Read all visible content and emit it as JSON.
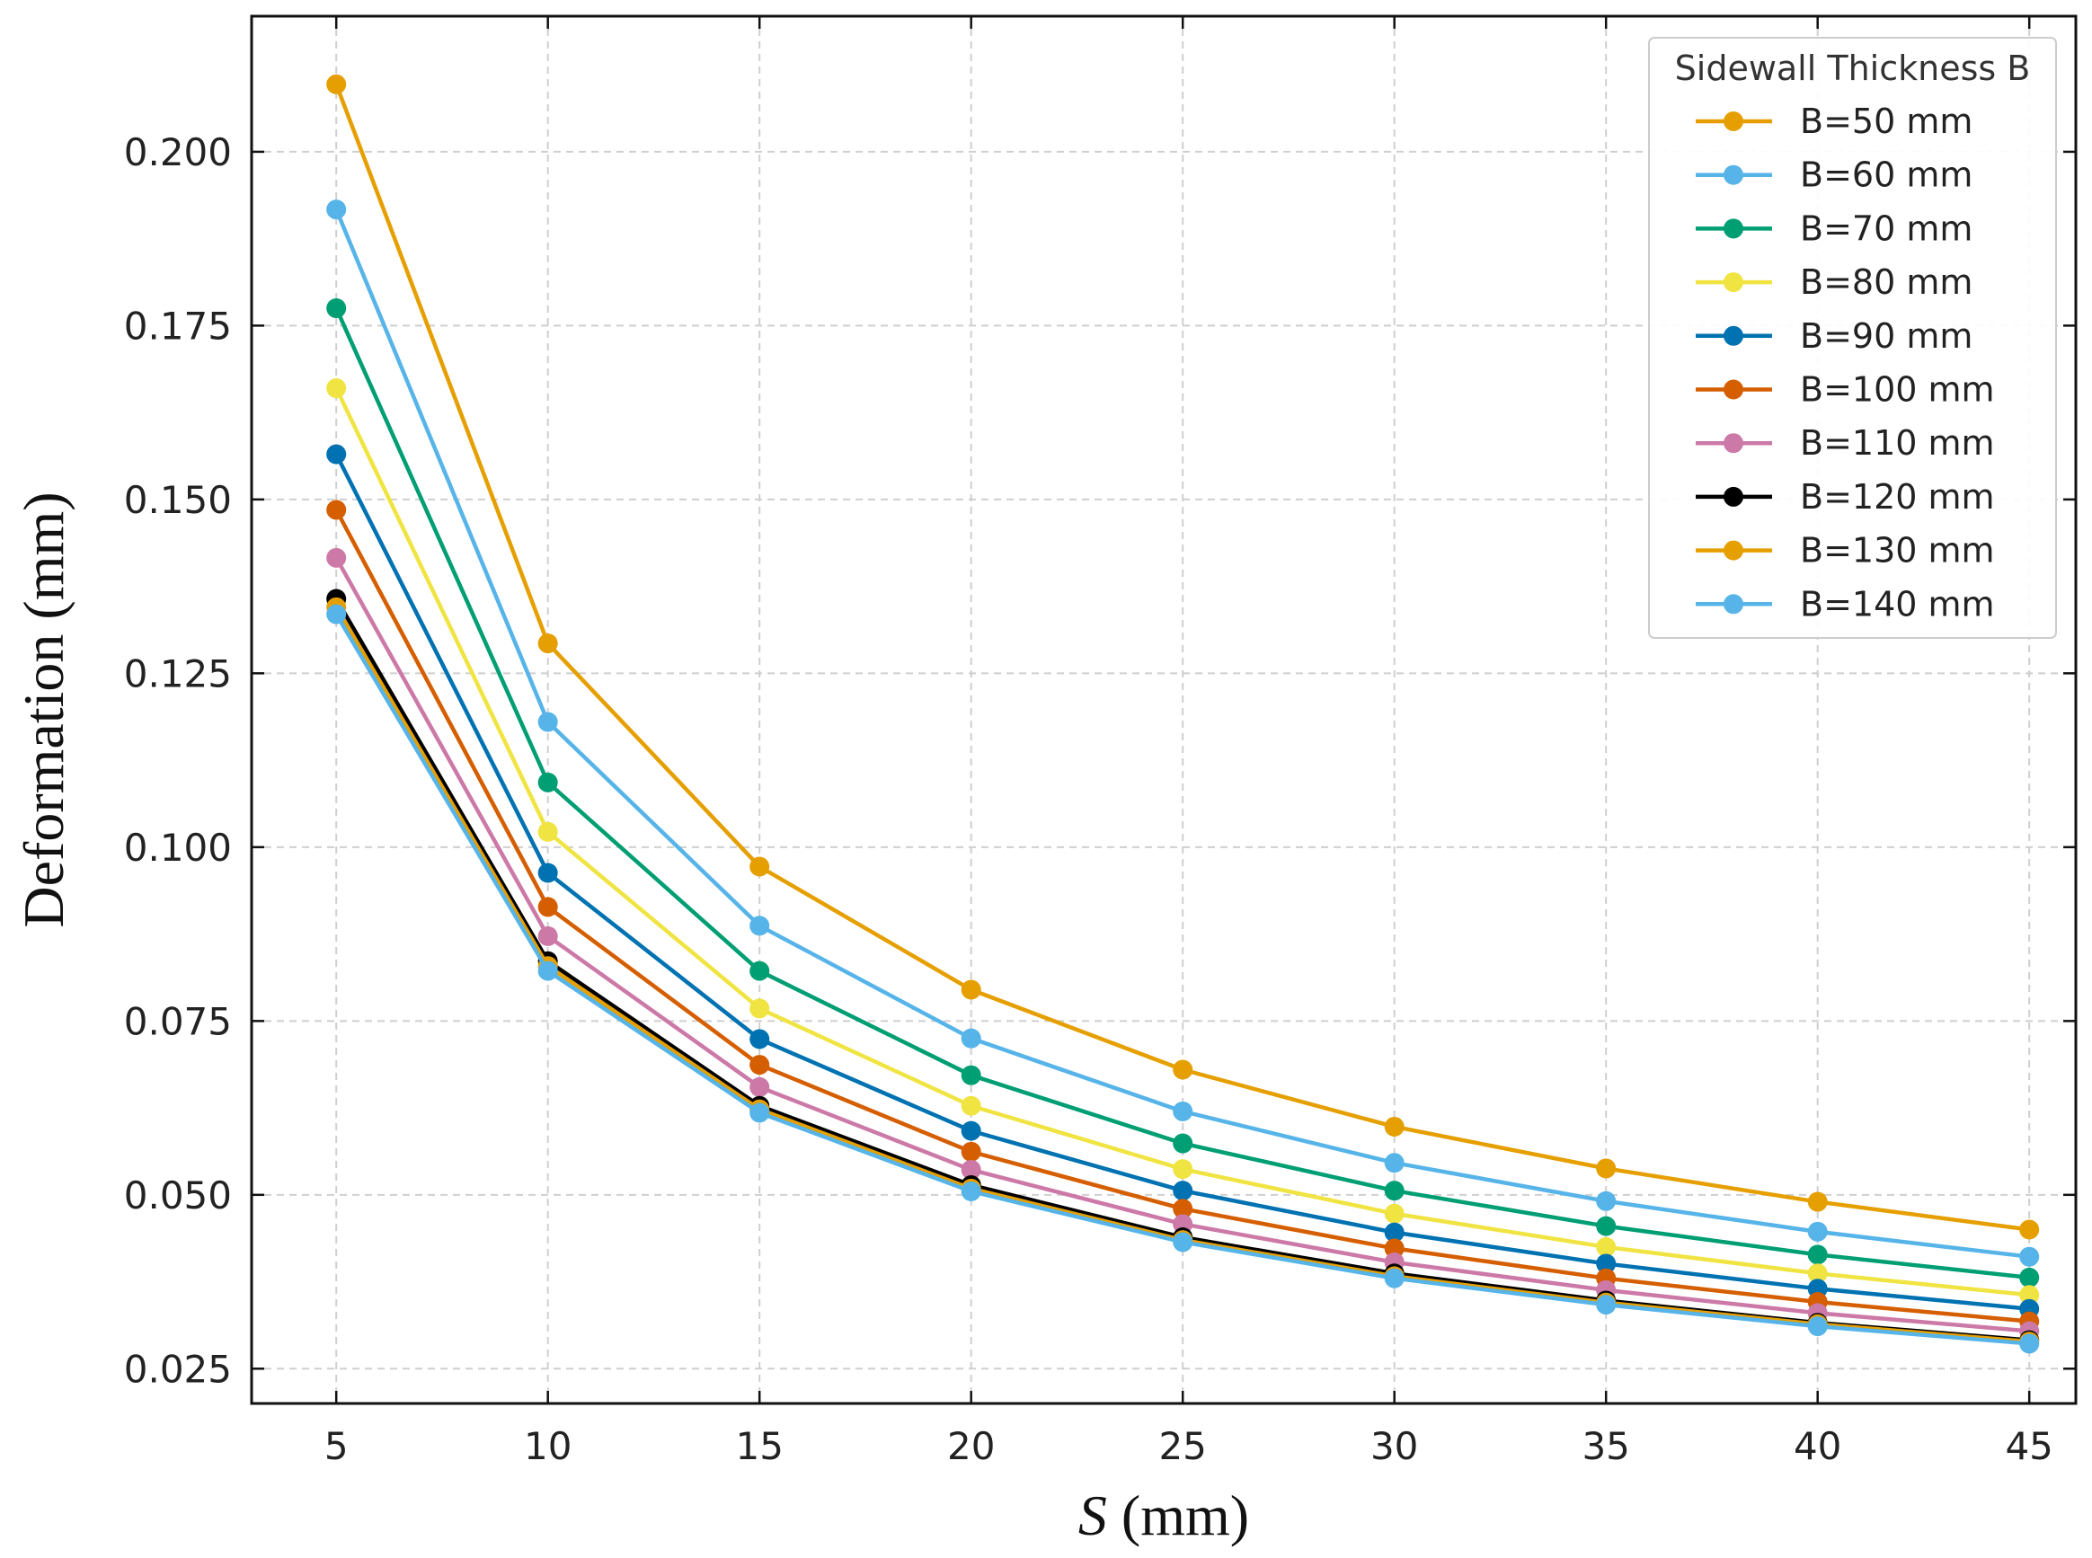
{
  "chart_data": {
    "type": "line",
    "title": "",
    "xlabel": "S (mm)",
    "xlabel_var": "S",
    "xlabel_unit": " (mm)",
    "ylabel": "Deformation (mm)",
    "x": [
      5,
      10,
      15,
      20,
      25,
      30,
      35,
      40,
      45
    ],
    "x_ticks": [
      "5",
      "10",
      "15",
      "20",
      "25",
      "30",
      "35",
      "40",
      "45"
    ],
    "y_ticks": [
      "0.025",
      "0.050",
      "0.075",
      "0.100",
      "0.125",
      "0.150",
      "0.175",
      "0.200"
    ],
    "xlim": [
      3,
      46.1
    ],
    "ylim": [
      0.02,
      0.2195
    ],
    "grid": true,
    "legend_title": "Sidewall Thickness B",
    "legend_position": "top-right",
    "series": [
      {
        "name": "B=50 mm",
        "color": "#E69F00",
        "values": [
          0.2097,
          0.1293,
          0.0972,
          0.0795,
          0.068,
          0.0598,
          0.0538,
          0.049,
          0.045
        ]
      },
      {
        "name": "B=60 mm",
        "color": "#56B4E9",
        "values": [
          0.1917,
          0.118,
          0.0887,
          0.0725,
          0.062,
          0.0546,
          0.0491,
          0.0447,
          0.0411
        ]
      },
      {
        "name": "B=70 mm",
        "color": "#009E73",
        "values": [
          0.1775,
          0.1093,
          0.0822,
          0.0672,
          0.0574,
          0.0506,
          0.0455,
          0.0414,
          0.0381
        ]
      },
      {
        "name": "B=80 mm",
        "color": "#F0E442",
        "values": [
          0.166,
          0.1022,
          0.0768,
          0.0628,
          0.0537,
          0.0473,
          0.0425,
          0.0387,
          0.0356
        ]
      },
      {
        "name": "B=90 mm",
        "color": "#0072B2",
        "values": [
          0.1565,
          0.0963,
          0.0724,
          0.0592,
          0.0506,
          0.0446,
          0.0401,
          0.0365,
          0.0336
        ]
      },
      {
        "name": "B=100 mm",
        "color": "#D55E00",
        "values": [
          0.1485,
          0.0914,
          0.0687,
          0.0562,
          0.048,
          0.0423,
          0.038,
          0.0346,
          0.0318
        ]
      },
      {
        "name": "B=110 mm",
        "color": "#CC79A7",
        "values": [
          0.1416,
          0.0872,
          0.0655,
          0.0536,
          0.0458,
          0.0403,
          0.0363,
          0.033,
          0.0304
        ]
      },
      {
        "name": "B=120 mm",
        "color": "#000000",
        "values": [
          0.1357,
          0.0836,
          0.0628,
          0.0514,
          0.0439,
          0.0387,
          0.0348,
          0.0316,
          0.0291
        ]
      },
      {
        "name": "B=130 mm",
        "color": "#E69F00",
        "values": [
          0.1345,
          0.0829,
          0.0623,
          0.0509,
          0.0435,
          0.0383,
          0.0345,
          0.0314,
          0.0289
        ]
      },
      {
        "name": "B=140 mm",
        "color": "#56B4E9",
        "values": [
          0.1335,
          0.0822,
          0.0618,
          0.0505,
          0.0432,
          0.038,
          0.0342,
          0.0311,
          0.0286
        ]
      }
    ]
  }
}
